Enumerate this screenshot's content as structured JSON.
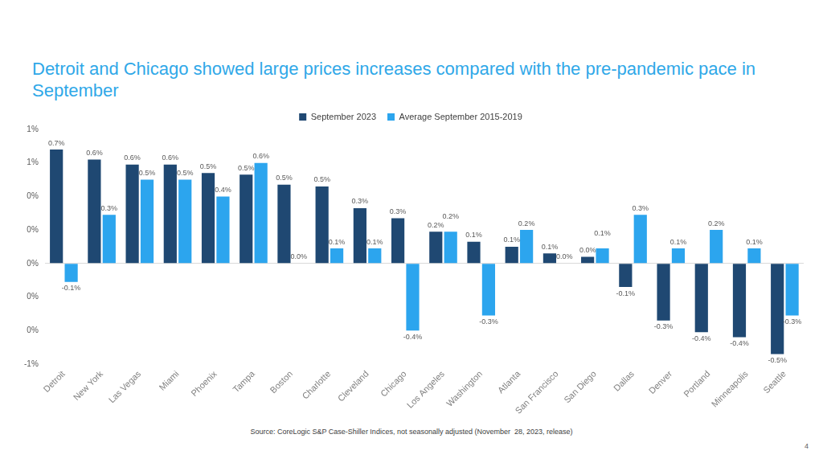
{
  "chart_data": {
    "type": "bar",
    "title": "Detroit and Chicago showed large prices increases compared with the pre-pandemic pace in September",
    "categories": [
      "Detroit",
      "New York",
      "Las Vegas",
      "Miami",
      "Phoenix",
      "Tampa",
      "Boston",
      "Charlotte",
      "Cleveland",
      "Chicago",
      "Los Angeles",
      "Washington",
      "Atlanta",
      "San Francisco",
      "San Diego",
      "Dallas",
      "Denver",
      "Portland",
      "Minneapolis",
      "Seattle"
    ],
    "series": [
      {
        "name": "September 2023",
        "color": "#1f4872",
        "values": [
          0.68,
          0.62,
          0.59,
          0.59,
          0.54,
          0.53,
          0.47,
          0.46,
          0.33,
          0.27,
          0.19,
          0.13,
          0.1,
          0.06,
          0.04,
          -0.14,
          -0.34,
          -0.41,
          -0.44,
          -0.54
        ],
        "value_labels": [
          "0.7%",
          "0.6%",
          "0.6%",
          "0.6%",
          "0.5%",
          "0.5%",
          "0.5%",
          "0.5%",
          "0.3%",
          "0.3%",
          "0.2%",
          "0.1%",
          "0.1%",
          "0.1%",
          "0.0%",
          "-0.1%",
          "-0.3%",
          "-0.4%",
          "-0.4%",
          "-0.5%"
        ]
      },
      {
        "name": "Average September 2015-2019",
        "color": "#2ca5ee",
        "values": [
          -0.11,
          0.29,
          0.5,
          0.5,
          0.4,
          0.6,
          0.0,
          0.09,
          0.09,
          -0.4,
          0.19,
          -0.31,
          0.2,
          0.0,
          0.09,
          0.29,
          0.09,
          0.2,
          0.09,
          -0.31
        ],
        "value_labels": [
          "-0.1%",
          "0.3%",
          "0.5%",
          "0.5%",
          "0.4%",
          "0.6%",
          "0.0%",
          "0.1%",
          "0.1%",
          "-0.4%",
          "0.2%",
          "-0.3%",
          "0.2%",
          "0.0%",
          "0.1%",
          "0.3%",
          "0.1%",
          "0.2%",
          "0.1%",
          "-0.3%"
        ]
      }
    ],
    "ylim": [
      -0.6,
      0.8
    ],
    "yticks": [
      {
        "value": -0.6,
        "label": "-1%"
      },
      {
        "value": -0.4,
        "label": "0%"
      },
      {
        "value": -0.2,
        "label": "0%"
      },
      {
        "value": 0,
        "label": "0%"
      },
      {
        "value": 0.2,
        "label": "0%"
      },
      {
        "value": 0.4,
        "label": "0%"
      },
      {
        "value": 0.6,
        "label": "1%"
      },
      {
        "value": 0.8,
        "label": "1%"
      }
    ],
    "grid": false,
    "legend": "top",
    "data_labels": true
  },
  "source": "Source: CoreLogic S&P Case-Shiller Indices, not seasonally adjusted (November  28, 2023, release)",
  "page_number": "4"
}
